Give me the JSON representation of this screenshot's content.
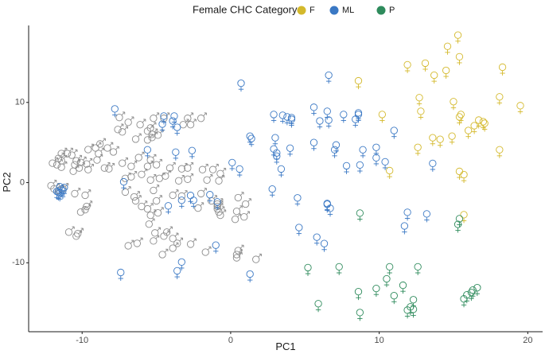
{
  "chart_data": {
    "type": "scatter",
    "title": "",
    "xlabel": "PC1",
    "ylabel": "PC2",
    "xlim": [
      -13.6,
      21.0
    ],
    "ylim": [
      -18.6,
      19.6
    ],
    "x_ticks": [
      -10,
      0,
      10,
      20
    ],
    "y_ticks": [
      -10,
      0,
      10
    ],
    "x_tick_labels": [
      "-10",
      "0",
      "10",
      "20"
    ],
    "y_tick_labels": [
      "-10",
      "0",
      "10"
    ],
    "grid": false,
    "legend": {
      "title": "Female CHC Category",
      "placement": "top",
      "entries": [
        {
          "label": "F",
          "color": "#d4b92c"
        },
        {
          "label": "ML",
          "color": "#3a78c4"
        },
        {
          "label": "P",
          "color": "#2e8b5c"
        }
      ]
    },
    "male_color": "#8c8c8c",
    "series": [
      {
        "name": "F",
        "marker": "female-symbol",
        "color": "#d4b92c",
        "points": [
          [
            15.3,
            18.0
          ],
          [
            14.6,
            16.6
          ],
          [
            15.4,
            15.3
          ],
          [
            11.9,
            14.3
          ],
          [
            13.1,
            14.5
          ],
          [
            13.7,
            13.0
          ],
          [
            14.5,
            13.6
          ],
          [
            18.3,
            14.0
          ],
          [
            8.6,
            12.3
          ],
          [
            12.7,
            10.2
          ],
          [
            15.0,
            9.7
          ],
          [
            18.1,
            10.3
          ],
          [
            19.5,
            9.2
          ],
          [
            10.2,
            8.1
          ],
          [
            12.8,
            8.5
          ],
          [
            15.5,
            8.1
          ],
          [
            15.4,
            7.8
          ],
          [
            16.7,
            7.4
          ],
          [
            17.0,
            7.2
          ],
          [
            17.1,
            7.0
          ],
          [
            16.4,
            6.7
          ],
          [
            16.0,
            6.1
          ],
          [
            14.9,
            5.4
          ],
          [
            14.1,
            5.0
          ],
          [
            13.6,
            5.2
          ],
          [
            12.6,
            4.0
          ],
          [
            18.1,
            3.7
          ],
          [
            10.7,
            1.1
          ],
          [
            15.4,
            1.0
          ],
          [
            15.7,
            0.6
          ],
          [
            15.7,
            -4.4
          ]
        ]
      },
      {
        "name": "ML",
        "marker": "female-symbol",
        "color": "#3a78c4",
        "points": [
          [
            0.7,
            12.0
          ],
          [
            6.6,
            13.0
          ],
          [
            5.6,
            9.0
          ],
          [
            6.5,
            8.5
          ],
          [
            2.9,
            8.1
          ],
          [
            3.5,
            8.0
          ],
          [
            3.8,
            7.8
          ],
          [
            4.1,
            7.7
          ],
          [
            7.6,
            8.1
          ],
          [
            8.6,
            8.3
          ],
          [
            8.6,
            8.1
          ],
          [
            8.4,
            7.5
          ],
          [
            6.0,
            7.3
          ],
          [
            6.6,
            7.4
          ],
          [
            4.1,
            7.5
          ],
          [
            -7.8,
            8.8
          ],
          [
            -4.5,
            7.9
          ],
          [
            -3.8,
            7.9
          ],
          [
            -3.9,
            7.3
          ],
          [
            -4.6,
            6.9
          ],
          [
            -3.6,
            6.5
          ],
          [
            11.0,
            6.1
          ],
          [
            1.3,
            5.4
          ],
          [
            1.4,
            5.1
          ],
          [
            3.0,
            5.2
          ],
          [
            5.6,
            4.6
          ],
          [
            7.1,
            4.3
          ],
          [
            7.0,
            3.7
          ],
          [
            8.9,
            3.7
          ],
          [
            9.8,
            4.0
          ],
          [
            4.0,
            3.9
          ],
          [
            -5.6,
            3.7
          ],
          [
            -2.6,
            3.6
          ],
          [
            -3.7,
            3.4
          ],
          [
            2.9,
            3.8
          ],
          [
            3.1,
            3.3
          ],
          [
            3.1,
            2.9
          ],
          [
            9.8,
            2.7
          ],
          [
            10.4,
            2.2
          ],
          [
            13.6,
            2.0
          ],
          [
            7.8,
            1.7
          ],
          [
            8.7,
            1.8
          ],
          [
            3.4,
            1.3
          ],
          [
            0.1,
            2.1
          ],
          [
            0.6,
            1.3
          ],
          [
            -7.2,
            -0.3
          ],
          [
            -1.4,
            -1.9
          ],
          [
            -2.7,
            -2.0
          ],
          [
            -2.5,
            -2.6
          ],
          [
            -3.3,
            -2.6
          ],
          [
            -4.2,
            -3.3
          ],
          [
            -0.9,
            -2.8
          ],
          [
            2.8,
            -1.2
          ],
          [
            6.5,
            -3.0
          ],
          [
            6.5,
            -3.1
          ],
          [
            6.7,
            -3.6
          ],
          [
            11.9,
            -4.1
          ],
          [
            13.2,
            -4.3
          ],
          [
            4.5,
            -2.3
          ],
          [
            -11.6,
            -1.6
          ],
          [
            -11.5,
            -1.7
          ],
          [
            -11.4,
            -1.2
          ],
          [
            -11.7,
            -1.5
          ],
          [
            -11.3,
            -1.4
          ],
          [
            -11.5,
            -0.9
          ],
          [
            -11.2,
            -1.0
          ],
          [
            4.6,
            -6.0
          ],
          [
            5.8,
            -7.2
          ],
          [
            6.3,
            -8.0
          ],
          [
            11.7,
            -5.8
          ],
          [
            -1.0,
            -8.2
          ],
          [
            -3.3,
            -10.3
          ],
          [
            -3.6,
            -11.4
          ],
          [
            -7.4,
            -11.6
          ],
          [
            1.3,
            -11.8
          ]
        ]
      },
      {
        "name": "P",
        "marker": "female-symbol",
        "color": "#2e8b5c",
        "points": [
          [
            8.7,
            -4.2
          ],
          [
            15.4,
            -4.9
          ],
          [
            15.3,
            -5.6
          ],
          [
            5.2,
            -11.0
          ],
          [
            7.3,
            -10.9
          ],
          [
            10.7,
            -10.9
          ],
          [
            12.6,
            -10.9
          ],
          [
            8.6,
            -14.0
          ],
          [
            9.8,
            -13.6
          ],
          [
            10.5,
            -12.4
          ],
          [
            11.0,
            -14.5
          ],
          [
            11.6,
            -13.2
          ],
          [
            12.3,
            -15.0
          ],
          [
            16.2,
            -14.1
          ],
          [
            16.6,
            -13.5
          ],
          [
            16.3,
            -13.8
          ],
          [
            15.9,
            -14.4
          ],
          [
            15.7,
            -14.9
          ],
          [
            5.9,
            -15.5
          ],
          [
            11.9,
            -16.3
          ],
          [
            12.3,
            -16.2
          ],
          [
            12.1,
            -15.9
          ],
          [
            8.7,
            -16.6
          ]
        ]
      },
      {
        "name": "",
        "marker": "male-symbol",
        "color": "#8c8c8c",
        "points": [
          [
            -7.4,
            8.3
          ],
          [
            -5.1,
            8.2
          ],
          [
            -4.4,
            8.2
          ],
          [
            -2.8,
            8.2
          ],
          [
            -1.9,
            8.2
          ],
          [
            -6.8,
            7.7
          ],
          [
            -6.0,
            7.4
          ],
          [
            -5.3,
            7.0
          ],
          [
            -3.1,
            7.4
          ],
          [
            -2.6,
            7.4
          ],
          [
            -7.5,
            6.8
          ],
          [
            -7.2,
            6.5
          ],
          [
            -5.5,
            6.6
          ],
          [
            -5.2,
            6.2
          ],
          [
            -4.8,
            6.1
          ],
          [
            -6.3,
            5.6
          ],
          [
            -5.5,
            5.5
          ],
          [
            -5.2,
            5.8
          ],
          [
            -8.7,
            5.0
          ],
          [
            -8.2,
            4.5
          ],
          [
            -9.0,
            4.5
          ],
          [
            -9.5,
            4.3
          ],
          [
            -7.8,
            4.0
          ],
          [
            -8.8,
            3.8
          ],
          [
            -6.1,
            3.3
          ],
          [
            -5.3,
            3.0
          ],
          [
            -11.3,
            3.8
          ],
          [
            -10.9,
            3.8
          ],
          [
            -10.6,
            3.6
          ],
          [
            -11.5,
            3.2
          ],
          [
            -11.3,
            2.9
          ],
          [
            -11.9,
            2.6
          ],
          [
            -11.6,
            2.4
          ],
          [
            -11.3,
            2.1
          ],
          [
            -10.3,
            2.9
          ],
          [
            -10.0,
            2.7
          ],
          [
            -9.6,
            2.5
          ],
          [
            -10.4,
            2.4
          ],
          [
            -10.1,
            2.0
          ],
          [
            -9.5,
            1.8
          ],
          [
            -10.5,
            1.6
          ],
          [
            -8.9,
            3.0
          ],
          [
            -8.4,
            2.0
          ],
          [
            -8.1,
            1.9
          ],
          [
            -7.2,
            2.6
          ],
          [
            -6.6,
            2.2
          ],
          [
            -5.5,
            2.2
          ],
          [
            -4.9,
            2.4
          ],
          [
            -4.0,
            2.0
          ],
          [
            -3.2,
            1.9
          ],
          [
            -2.8,
            2.0
          ],
          [
            -1.8,
            1.8
          ],
          [
            -1.1,
            1.8
          ],
          [
            -0.6,
            1.3
          ],
          [
            -4.3,
            1.0
          ],
          [
            -4.7,
            0.7
          ],
          [
            -5.3,
            0.5
          ],
          [
            -5.9,
            1.2
          ],
          [
            -6.6,
            0.9
          ],
          [
            -7.0,
            0.7
          ],
          [
            -3.4,
            0.4
          ],
          [
            -2.8,
            0.6
          ],
          [
            -1.5,
            0.5
          ],
          [
            -0.7,
            0.4
          ],
          [
            -12.0,
            -0.2
          ],
          [
            -11.8,
            -0.6
          ],
          [
            -11.5,
            -0.8
          ],
          [
            -11.2,
            -0.6
          ],
          [
            -10.4,
            -1.2
          ],
          [
            -9.7,
            -1.4
          ],
          [
            -7.0,
            -1.0
          ],
          [
            -6.4,
            -1.6
          ],
          [
            -5.1,
            -0.8
          ],
          [
            -4.9,
            -2.1
          ],
          [
            -6.3,
            -2.1
          ],
          [
            -5.9,
            -2.8
          ],
          [
            -5.5,
            -3.1
          ],
          [
            -3.8,
            -1.4
          ],
          [
            -3.2,
            -1.5
          ],
          [
            -1.9,
            -1.2
          ],
          [
            -2.1,
            -3.0
          ],
          [
            -1.2,
            -2.1
          ],
          [
            -0.8,
            -2.5
          ],
          [
            -0.8,
            -2.8
          ],
          [
            -0.8,
            -3.1
          ],
          [
            -0.7,
            -3.5
          ],
          [
            -0.6,
            -3.9
          ],
          [
            0.6,
            -1.7
          ],
          [
            1.1,
            -2.5
          ],
          [
            0.5,
            -3.4
          ],
          [
            1.0,
            -4.1
          ],
          [
            0.4,
            -4.4
          ],
          [
            -4.8,
            -3.6
          ],
          [
            -5.3,
            -3.9
          ],
          [
            -9.7,
            -3.2
          ],
          [
            -10.0,
            -3.5
          ],
          [
            -9.6,
            -2.8
          ],
          [
            -5.4,
            -5.0
          ],
          [
            -5.0,
            -6.1
          ],
          [
            -4.4,
            -6.5
          ],
          [
            -4.2,
            -6.0
          ],
          [
            -3.8,
            -6.8
          ],
          [
            -5.1,
            -7.1
          ],
          [
            -6.2,
            -7.4
          ],
          [
            -6.8,
            -7.7
          ],
          [
            -10.3,
            -6.5
          ],
          [
            -10.2,
            -6.2
          ],
          [
            -10.8,
            -6.0
          ],
          [
            -3.5,
            -7.4
          ],
          [
            -2.6,
            -7.5
          ],
          [
            -3.8,
            -8.0
          ],
          [
            -1.6,
            -8.5
          ],
          [
            -4.5,
            -8.8
          ],
          [
            0.5,
            -8.8
          ],
          [
            0.5,
            -9.2
          ],
          [
            0.6,
            -8.3
          ],
          [
            1.8,
            -9.4
          ]
        ]
      }
    ]
  }
}
